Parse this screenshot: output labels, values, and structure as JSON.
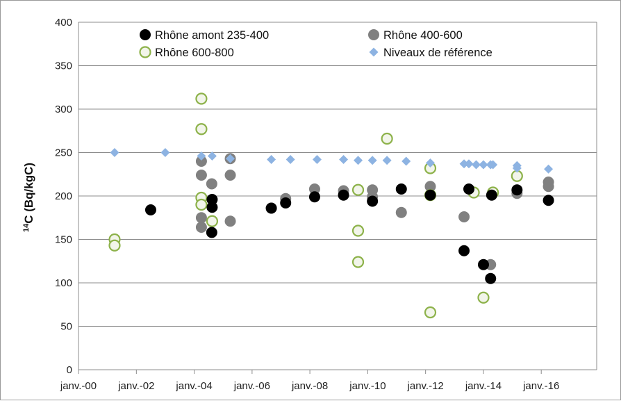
{
  "chart_data": {
    "type": "scatter",
    "title": "",
    "xlabel": "",
    "ylabel": {
      "sup": "14",
      "main": "C (Bq/kgC)"
    },
    "xlim": [
      "2000-01-01",
      "2017-12-01"
    ],
    "ylim": [
      0,
      400
    ],
    "grid": true,
    "legend_position": "top",
    "x_tick_labels": [
      "janv.-00",
      "janv.-02",
      "janv.-04",
      "janv.-06",
      "janv.-08",
      "janv.-10",
      "janv.-12",
      "janv.-14",
      "janv.-16"
    ],
    "x_tick_dates": [
      "2000-01-01",
      "2002-01-01",
      "2004-01-01",
      "2006-01-01",
      "2008-01-01",
      "2010-01-01",
      "2012-01-01",
      "2014-01-01",
      "2016-01-01"
    ],
    "y_ticks": [
      0,
      50,
      100,
      150,
      200,
      250,
      300,
      350,
      400
    ],
    "series": [
      {
        "name": "Rhône amont 235-400",
        "marker": "filled-circle",
        "color": "#000000",
        "x": [
          "2002-07-01",
          "2004-08-15",
          "2004-08-15",
          "2004-08-10",
          "2006-09-01",
          "2007-03-01",
          "2008-03-01",
          "2009-03-01",
          "2010-03-01",
          "2011-03-01",
          "2012-03-01",
          "2013-05-01",
          "2013-07-01",
          "2014-01-01",
          "2014-04-01",
          "2014-04-15",
          "2015-03-01",
          "2016-04-01"
        ],
        "y": [
          184,
          196,
          187,
          158,
          186,
          192,
          199,
          201,
          194,
          208,
          201,
          137,
          208,
          121,
          105,
          201,
          207,
          195
        ]
      },
      {
        "name": "Rhône 400-600",
        "marker": "filled-circle",
        "color": "#808080",
        "x": [
          "2004-04-01",
          "2004-04-01",
          "2004-04-01",
          "2004-04-01",
          "2004-08-10",
          "2005-04-01",
          "2005-04-01",
          "2005-04-01",
          "2006-09-01",
          "2007-03-01",
          "2008-03-01",
          "2009-03-01",
          "2010-03-01",
          "2010-03-01",
          "2011-03-01",
          "2012-03-01",
          "2013-05-01",
          "2014-04-01",
          "2015-03-01",
          "2016-04-01",
          "2016-04-01"
        ],
        "y": [
          240,
          224,
          175,
          164,
          214,
          243,
          224,
          171,
          186,
          197,
          208,
          206,
          207,
          199,
          181,
          211,
          176,
          121,
          203,
          216,
          211
        ]
      },
      {
        "name": "Rhône 600-800",
        "marker": "open-circle",
        "color": "#8db24a",
        "x": [
          "2001-04-01",
          "2001-04-01",
          "2004-04-01",
          "2004-04-01",
          "2004-04-01",
          "2004-04-01",
          "2004-08-15",
          "2009-09-01",
          "2009-09-01",
          "2009-09-01",
          "2010-09-01",
          "2012-03-01",
          "2012-03-01",
          "2012-03-01",
          "2013-09-01",
          "2014-01-01",
          "2014-05-01",
          "2015-03-01"
        ],
        "y": [
          150,
          143,
          312,
          277,
          198,
          190,
          171,
          207,
          160,
          124,
          266,
          232,
          201,
          66,
          204,
          83,
          204,
          223
        ]
      },
      {
        "name": "Niveaux de référence",
        "marker": "diamond",
        "color": "#8db3e2",
        "x": [
          "2001-04-01",
          "2003-01-01",
          "2004-04-01",
          "2004-08-15",
          "2005-04-01",
          "2006-09-01",
          "2007-05-01",
          "2008-04-01",
          "2009-03-01",
          "2009-09-01",
          "2010-03-01",
          "2010-09-01",
          "2011-05-01",
          "2012-03-01",
          "2013-05-01",
          "2013-07-01",
          "2013-10-01",
          "2014-01-01",
          "2014-04-01",
          "2014-05-01",
          "2015-03-01",
          "2015-03-01",
          "2016-04-01"
        ],
        "y": [
          250,
          250,
          246,
          246,
          243,
          242,
          242,
          242,
          242,
          241,
          241,
          241,
          240,
          238,
          237,
          237,
          236,
          236,
          236,
          236,
          235,
          232,
          231
        ]
      }
    ]
  }
}
